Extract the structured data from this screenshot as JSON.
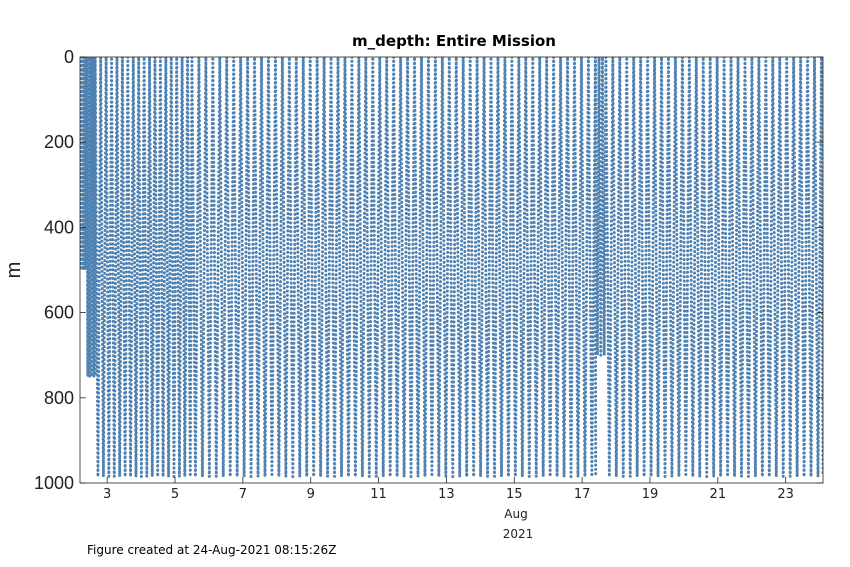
{
  "chart_data": {
    "type": "scatter",
    "title": "m_depth: Entire Mission",
    "xlabel_month": "Aug",
    "xlabel_year": "2021",
    "ylabel": "m",
    "xlim": [
      2.2,
      24.1
    ],
    "ylim": [
      1000,
      0
    ],
    "y_reversed": true,
    "x_ticks": [
      "3",
      "5",
      "7",
      "9",
      "11",
      "13",
      "15",
      "17",
      "19",
      "21",
      "23"
    ],
    "x_tick_values": [
      3,
      5,
      7,
      9,
      11,
      13,
      15,
      17,
      19,
      21,
      23
    ],
    "y_ticks": [
      "0",
      "200",
      "400",
      "600",
      "800",
      "1000"
    ],
    "y_tick_values": [
      0,
      200,
      400,
      600,
      800,
      1000
    ],
    "grid": false,
    "series": [
      {
        "color": "#4f81b1",
        "segments": [
          {
            "x_start": 2.2,
            "x_end": 2.4,
            "dive_period_days": 0.06,
            "min_depth": 0,
            "max_depth": 500
          },
          {
            "x_start": 2.4,
            "x_end": 2.65,
            "dive_period_days": 0.06,
            "min_depth": 0,
            "max_depth": 750
          },
          {
            "x_start": 2.65,
            "x_end": 5.5,
            "dive_period_days": 0.16,
            "min_depth": 0,
            "max_depth": 985
          },
          {
            "x_start": 5.5,
            "x_end": 17.4,
            "dive_period_days": 0.205,
            "min_depth": 0,
            "max_depth": 985
          },
          {
            "x_start": 17.4,
            "x_end": 17.7,
            "dive_period_days": 0.1,
            "min_depth": 0,
            "max_depth": 700
          },
          {
            "x_start": 17.7,
            "x_end": 24.1,
            "dive_period_days": 0.205,
            "min_depth": 0,
            "max_depth": 985
          }
        ]
      }
    ]
  },
  "footer": "Figure created at 24-Aug-2021 08:15:26Z"
}
